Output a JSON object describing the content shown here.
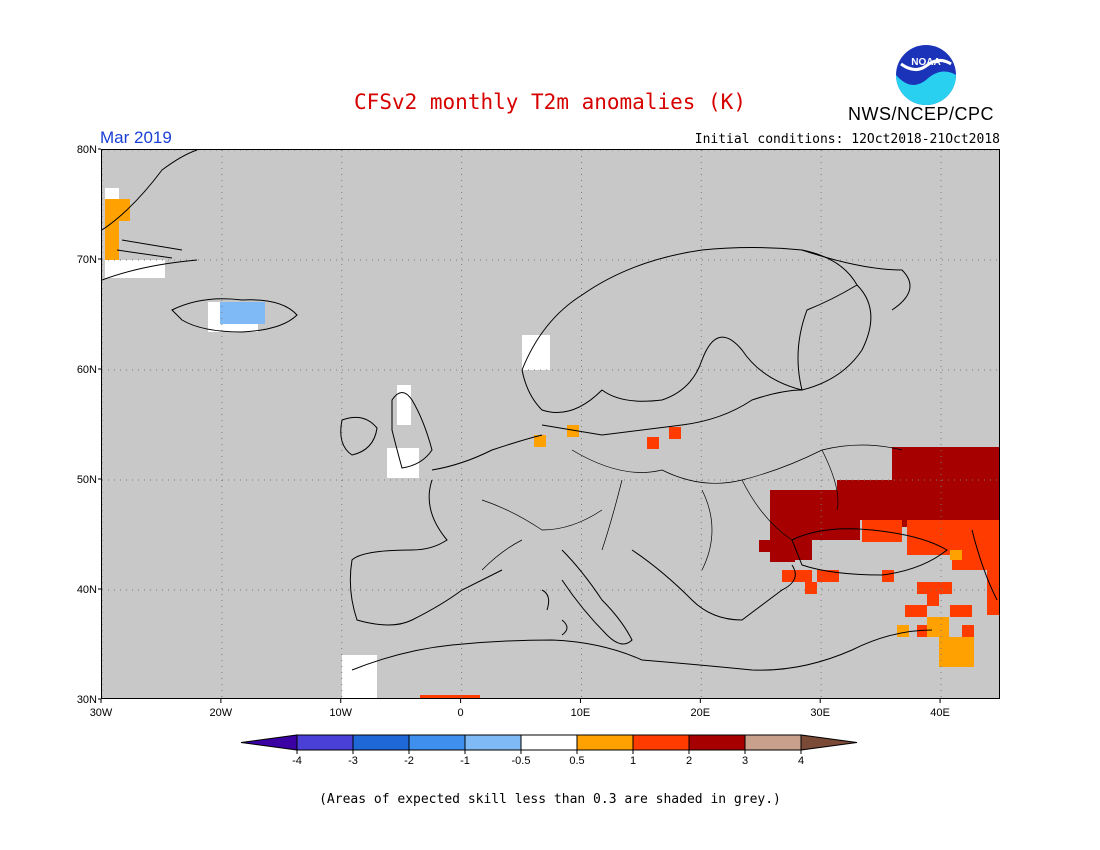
{
  "title": "CFSv2 monthly T2m anomalies (K)",
  "agency": "NWS/NCEP/CPC",
  "logo_text": "NOAA",
  "forecast_month": "Mar 2019",
  "initial_conditions": "Initial conditions: 12Oct2018-21Oct2018",
  "note": "(Areas of expected skill less than 0.3 are shaded in grey.)",
  "axes": {
    "lat_ticks": [
      {
        "value": 80,
        "label": "80N"
      },
      {
        "value": 70,
        "label": "70N"
      },
      {
        "value": 60,
        "label": "60N"
      },
      {
        "value": 50,
        "label": "50N"
      },
      {
        "value": 40,
        "label": "40N"
      },
      {
        "value": 30,
        "label": "30N"
      }
    ],
    "lon_ticks": [
      {
        "value": -30,
        "label": "30W"
      },
      {
        "value": -20,
        "label": "20W"
      },
      {
        "value": -10,
        "label": "10W"
      },
      {
        "value": 0,
        "label": "0"
      },
      {
        "value": 10,
        "label": "10E"
      },
      {
        "value": 20,
        "label": "20E"
      },
      {
        "value": 30,
        "label": "30E"
      },
      {
        "value": 40,
        "label": "40E"
      }
    ],
    "lon_range": [
      -30,
      45
    ],
    "lat_range": [
      30,
      80
    ],
    "gridlines": true
  },
  "colorbar": {
    "colors": [
      "#3b00a3",
      "#4a40d8",
      "#1f68d8",
      "#3f90ee",
      "#80baf6",
      "#ffffff",
      "#ffa100",
      "#ff3b00",
      "#a60000",
      "#c8a08c",
      "#7a4a36"
    ],
    "tick_labels": [
      "-4",
      "-3",
      "-2",
      "-1",
      "-0.5",
      "0.5",
      "1",
      "2",
      "3",
      "4"
    ]
  },
  "colors": {
    "grey_low_skill": "#c8c8c8",
    "title_red": "#d60000",
    "month_blue": "#1a3fd6"
  }
}
